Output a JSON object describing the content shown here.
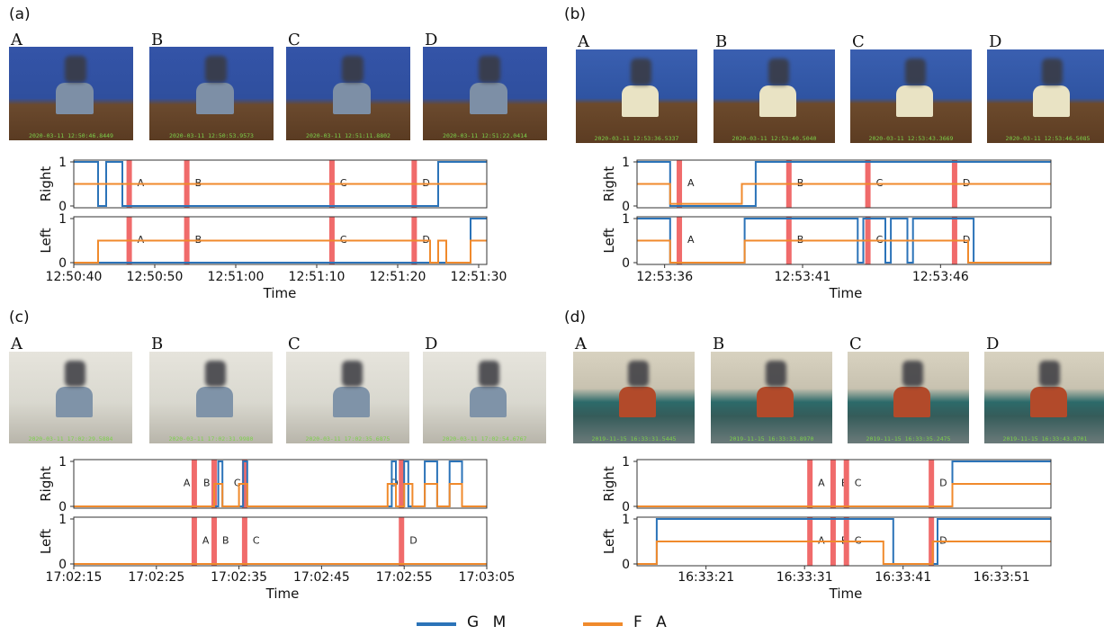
{
  "colors": {
    "gm": "#2b73b8",
    "fa": "#f08a2c",
    "event": "#f06b6b"
  },
  "legend": [
    {
      "name": "G M",
      "color": "#2b73b8"
    },
    {
      "name": "F A",
      "color": "#f08a2c"
    }
  ],
  "frame_letters": [
    "A",
    "B",
    "C",
    "D"
  ],
  "panels": [
    {
      "label": "(a)",
      "scene": "desk",
      "timestamps": [
        "2020-03-11 12:50:46.8449",
        "2020-03-11 12:50:53.9573",
        "2020-03-11 12:51:11.8802",
        "2020-03-11 12:51:22.0414"
      ]
    },
    {
      "label": "(b)",
      "scene": "paper",
      "timestamps": [
        "2020-03-11 12:53:36.5337",
        "2020-03-11 12:53:40.5040",
        "2020-03-11 12:53:43.3669",
        "2020-03-11 12:53:46.5085"
      ]
    },
    {
      "label": "(c)",
      "scene": "corridor",
      "timestamps": [
        "2020-03-11 17:02:29.5884",
        "2020-03-11 17:02:31.9980",
        "2020-03-11 17:02:35.6875",
        "2020-03-11 17:02:54.6767"
      ]
    },
    {
      "label": "(d)",
      "scene": "office",
      "timestamps": [
        "2019-11-15 16:33:31.5445",
        "2019-11-15 16:33:33.8970",
        "2019-11-15 16:33:35.2475",
        "2019-11-15 16:33:43.8701"
      ]
    }
  ],
  "chart_data": [
    {
      "type": "line",
      "panel": "(a)",
      "xlabel": "Time",
      "xlim": [
        "12:50:40",
        "12:51:31"
      ],
      "xticks": [
        "12:50:40",
        "12:50:50",
        "12:51:00",
        "12:51:10",
        "12:51:20",
        "12:51:30"
      ],
      "subplots": [
        {
          "ylabel": "Right",
          "ylim": [
            0,
            1
          ],
          "yticks": [
            "0",
            "1"
          ],
          "series": [
            {
              "name": "G M",
              "x": [
                "12:50:40",
                "12:50:43",
                "12:50:43",
                "12:50:44",
                "12:50:44",
                "12:50:46",
                "12:50:46",
                "12:51:25",
                "12:51:25",
                "12:51:31"
              ],
              "y": [
                1,
                1,
                0,
                0,
                1,
                1,
                0,
                0,
                1,
                1
              ]
            },
            {
              "name": "F A",
              "x": [
                "12:50:40",
                "12:51:31"
              ],
              "y": [
                0.5,
                0.5
              ]
            }
          ],
          "events": [
            {
              "label": "A",
              "x": "12:50:46.8449"
            },
            {
              "label": "B",
              "x": "12:50:53.9573"
            },
            {
              "label": "C",
              "x": "12:51:11.8802"
            },
            {
              "label": "D",
              "x": "12:51:22.0414"
            }
          ]
        },
        {
          "ylabel": "Left",
          "ylim": [
            0,
            1
          ],
          "yticks": [
            "0",
            "1"
          ],
          "series": [
            {
              "name": "G M",
              "x": [
                "12:50:40",
                "12:51:29",
                "12:51:29",
                "12:51:31"
              ],
              "y": [
                0,
                0,
                1,
                1
              ]
            },
            {
              "name": "F A",
              "x": [
                "12:50:40",
                "12:50:43",
                "12:50:43",
                "12:51:24",
                "12:51:24",
                "12:51:25",
                "12:51:25",
                "12:51:26",
                "12:51:26",
                "12:51:27",
                "12:51:27",
                "12:51:29",
                "12:51:29",
                "12:51:31"
              ],
              "y": [
                0,
                0,
                0.5,
                0.5,
                0,
                0,
                0.5,
                0.5,
                0,
                0,
                0,
                0,
                0.5,
                0.5
              ]
            }
          ],
          "events": [
            {
              "label": "A",
              "x": "12:50:46.8449"
            },
            {
              "label": "B",
              "x": "12:50:53.9573"
            },
            {
              "label": "C",
              "x": "12:51:11.8802"
            },
            {
              "label": "D",
              "x": "12:51:22.0414"
            }
          ]
        }
      ]
    },
    {
      "type": "line",
      "panel": "(b)",
      "xlabel": "Time",
      "xlim": [
        "12:53:35",
        "12:53:50"
      ],
      "xticks": [
        "12:53:36",
        "12:53:41",
        "12:53:46"
      ],
      "subplots": [
        {
          "ylabel": "Right",
          "ylim": [
            0,
            1
          ],
          "yticks": [
            "0",
            "1"
          ],
          "series": [
            {
              "name": "G M",
              "x": [
                "12:53:35",
                "12:53:36.2",
                "12:53:36.2",
                "12:53:39.3",
                "12:53:39.3",
                "12:53:50"
              ],
              "y": [
                1,
                1,
                0,
                0,
                1,
                1
              ]
            },
            {
              "name": "F A",
              "x": [
                "12:53:35",
                "12:53:36.2",
                "12:53:36.2",
                "12:53:38.8",
                "12:53:38.8",
                "12:53:50"
              ],
              "y": [
                0.5,
                0.5,
                0.05,
                0.05,
                0.5,
                0.5
              ]
            }
          ],
          "events": [
            {
              "label": "A",
              "x": "12:53:36.5337"
            },
            {
              "label": "B",
              "x": "12:53:40.5040"
            },
            {
              "label": "C",
              "x": "12:53:43.3669"
            },
            {
              "label": "D",
              "x": "12:53:46.5085"
            }
          ]
        },
        {
          "ylabel": "Left",
          "ylim": [
            0,
            1
          ],
          "yticks": [
            "0",
            "1"
          ],
          "series": [
            {
              "name": "G M",
              "x": [
                "12:53:35",
                "12:53:36.2",
                "12:53:36.2",
                "12:53:38.9",
                "12:53:38.9",
                "12:53:43",
                "12:53:43",
                "12:53:43.2",
                "12:53:43.2",
                "12:53:44",
                "12:53:44",
                "12:53:44.2",
                "12:53:44.2",
                "12:53:44.8",
                "12:53:44.8",
                "12:53:45",
                "12:53:45",
                "12:53:47.2",
                "12:53:47.2",
                "12:53:50"
              ],
              "y": [
                1,
                1,
                0,
                0,
                1,
                1,
                0,
                0,
                1,
                1,
                0,
                0,
                1,
                1,
                0,
                0,
                1,
                1,
                0,
                0
              ]
            },
            {
              "name": "F A",
              "x": [
                "12:53:35",
                "12:53:36.2",
                "12:53:36.2",
                "12:53:38.9",
                "12:53:38.9",
                "12:53:47",
                "12:53:47",
                "12:53:50"
              ],
              "y": [
                0.5,
                0.5,
                0,
                0,
                0.5,
                0.5,
                0,
                0
              ]
            }
          ],
          "events": [
            {
              "label": "A",
              "x": "12:53:36.5337"
            },
            {
              "label": "B",
              "x": "12:53:40.5040"
            },
            {
              "label": "C",
              "x": "12:53:43.3669"
            },
            {
              "label": "D",
              "x": "12:53:46.5085"
            }
          ]
        }
      ]
    },
    {
      "type": "line",
      "panel": "(c)",
      "xlabel": "Time",
      "xlim": [
        "17:02:15",
        "17:03:05"
      ],
      "xticks": [
        "17:02:15",
        "17:02:25",
        "17:02:35",
        "17:02:45",
        "17:02:55",
        "17:03:05"
      ],
      "subplots": [
        {
          "ylabel": "Right",
          "ylim": [
            0,
            1
          ],
          "yticks": [
            "0",
            "1"
          ],
          "series": [
            {
              "name": "G M",
              "x": [
                "17:02:15",
                "17:02:32.5",
                "17:02:32.5",
                "17:02:33",
                "17:02:33",
                "17:02:35.5",
                "17:02:35.5",
                "17:02:36",
                "17:02:36",
                "17:02:53.5",
                "17:02:53.5",
                "17:02:54",
                "17:02:54",
                "17:02:55",
                "17:02:55",
                "17:02:55.5",
                "17:02:55.5",
                "17:02:57.5",
                "17:02:57.5",
                "17:02:59",
                "17:02:59",
                "17:03:00.5",
                "17:03:00.5",
                "17:03:02",
                "17:03:02",
                "17:03:05"
              ],
              "y": [
                0,
                0,
                1,
                1,
                0,
                0,
                1,
                1,
                0,
                0,
                1,
                1,
                0,
                0,
                1,
                1,
                0,
                0,
                1,
                1,
                0,
                0,
                1,
                1,
                0,
                0
              ]
            },
            {
              "name": "F A",
              "x": [
                "17:02:15",
                "17:02:32",
                "17:02:32",
                "17:02:33",
                "17:02:33",
                "17:02:35",
                "17:02:35",
                "17:02:36",
                "17:02:36",
                "17:02:53",
                "17:02:53",
                "17:02:54",
                "17:02:54",
                "17:02:55",
                "17:02:55",
                "17:02:56",
                "17:02:56",
                "17:02:57.5",
                "17:02:57.5",
                "17:02:59",
                "17:02:59",
                "17:03:00.5",
                "17:03:00.5",
                "17:03:02",
                "17:03:02",
                "17:03:05"
              ],
              "y": [
                0,
                0,
                0.5,
                0.5,
                0,
                0,
                0.5,
                0.5,
                0,
                0,
                0.5,
                0.5,
                0,
                0,
                0.5,
                0.5,
                0,
                0,
                0.5,
                0.5,
                0,
                0,
                0.5,
                0.5,
                0,
                0
              ]
            }
          ],
          "events": [
            {
              "label": "A",
              "x": "17:02:29.5884"
            },
            {
              "label": "B",
              "x": "17:02:31.9980"
            },
            {
              "label": "C",
              "x": "17:02:35.6875"
            },
            {
              "label": "D",
              "x": "17:02:54.6767"
            }
          ]
        },
        {
          "ylabel": "Left",
          "ylim": [
            0,
            1
          ],
          "yticks": [
            "0",
            "1"
          ],
          "series": [
            {
              "name": "G M",
              "x": [
                "17:02:15",
                "17:03:05"
              ],
              "y": [
                0,
                0
              ]
            },
            {
              "name": "F A",
              "x": [
                "17:02:15",
                "17:03:05"
              ],
              "y": [
                0,
                0
              ]
            }
          ],
          "events": [
            {
              "label": "A",
              "x": "17:02:29.5884"
            },
            {
              "label": "B",
              "x": "17:02:31.9980"
            },
            {
              "label": "C",
              "x": "17:02:35.6875"
            },
            {
              "label": "D",
              "x": "17:02:54.6767"
            }
          ]
        }
      ]
    },
    {
      "type": "line",
      "panel": "(d)",
      "xlabel": "Time",
      "xlim": [
        "16:33:14",
        "16:33:56"
      ],
      "xticks": [
        "16:33:21",
        "16:33:31",
        "16:33:41",
        "16:33:51"
      ],
      "subplots": [
        {
          "ylabel": "Right",
          "ylim": [
            0,
            1
          ],
          "yticks": [
            "0",
            "1"
          ],
          "series": [
            {
              "name": "G M",
              "x": [
                "16:33:14",
                "16:33:46",
                "16:33:46",
                "16:33:56"
              ],
              "y": [
                0,
                0,
                1,
                1
              ]
            },
            {
              "name": "F A",
              "x": [
                "16:33:14",
                "16:33:46",
                "16:33:46",
                "16:33:56"
              ],
              "y": [
                0,
                0,
                0.5,
                0.5
              ]
            }
          ],
          "events": [
            {
              "label": "A",
              "x": "16:33:31.5445"
            },
            {
              "label": "B",
              "x": "16:33:33.8970"
            },
            {
              "label": "C",
              "x": "16:33:35.2475"
            },
            {
              "label": "D",
              "x": "16:33:43.8701"
            }
          ]
        },
        {
          "ylabel": "Left",
          "ylim": [
            0,
            1
          ],
          "yticks": [
            "0",
            "1"
          ],
          "series": [
            {
              "name": "G M",
              "x": [
                "16:33:14",
                "16:33:16",
                "16:33:16",
                "16:33:40",
                "16:33:40",
                "16:33:44.5",
                "16:33:44.5",
                "16:33:56"
              ],
              "y": [
                0,
                0,
                1,
                1,
                0,
                0,
                1,
                1
              ]
            },
            {
              "name": "F A",
              "x": [
                "16:33:14",
                "16:33:16",
                "16:33:16",
                "16:33:39",
                "16:33:39",
                "16:33:44",
                "16:33:44",
                "16:33:56"
              ],
              "y": [
                0,
                0,
                0.5,
                0.5,
                0,
                0,
                0.5,
                0.5
              ]
            }
          ],
          "events": [
            {
              "label": "A",
              "x": "16:33:31.5445"
            },
            {
              "label": "B",
              "x": "16:33:33.8970"
            },
            {
              "label": "C",
              "x": "16:33:35.2475"
            },
            {
              "label": "D",
              "x": "16:33:43.8701"
            }
          ]
        }
      ]
    }
  ]
}
